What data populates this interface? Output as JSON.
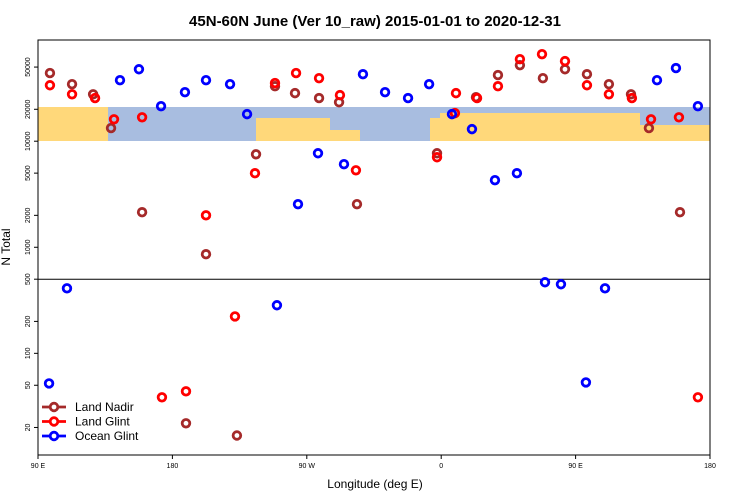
{
  "chart_data": {
    "type": "scatter",
    "title": "45N-60N June (Ver 10_raw)   2015-01-01 to 2020-12-31",
    "xlabel": "Longitude (deg E)",
    "ylabel": "N Total",
    "log_y": true,
    "legend": "lower left",
    "xlim": [
      90,
      540
    ],
    "xticks": [
      {
        "value": 90,
        "label": "90 E"
      },
      180,
      {
        "value": 270,
        "label": "90 W"
      },
      {
        "value": 360,
        "label": "0"
      },
      {
        "value": 450,
        "label": "90 E"
      },
      {
        "value": 540,
        "label": "180"
      }
    ],
    "ylim": [
      11,
      90000
    ],
    "yticks": [
      20,
      50,
      100,
      200,
      500,
      1000,
      2000,
      5000,
      10000,
      20000,
      50000
    ],
    "hline": 500,
    "series": [
      {
        "name": "Land Nadir",
        "color": "#a52a2a",
        "x": [
          98.0,
          112.8,
          126.9,
          138.9,
          159.7,
          202.5,
          189.1,
          223.2,
          236.0,
          248.7,
          262.1,
          278.2,
          291.6,
          303.6,
          357.2,
          383.3,
          398.0,
          412.7,
          428.1,
          442.9,
          457.6,
          472.3,
          487.1,
          499.1,
          519.9
        ],
        "values": [
          43900,
          34500,
          27700,
          13300,
          2140,
          860,
          21.9,
          16.8,
          7530,
          33000,
          28400,
          25500,
          23300,
          2550,
          7700,
          26000,
          42000,
          52100,
          39300,
          47700,
          42800,
          34500,
          27700,
          13300,
          2140
        ]
      },
      {
        "name": "Land Glint",
        "color": "#ff0000",
        "x": [
          98.0,
          112.8,
          128.2,
          140.9,
          159.7,
          173.0,
          189.1,
          202.5,
          221.9,
          235.3,
          248.7,
          262.8,
          278.2,
          292.2,
          302.9,
          357.2,
          369.9,
          369.2,
          384.0,
          398.0,
          412.7,
          427.5,
          442.9,
          457.6,
          472.3,
          487.7,
          500.5,
          519.2,
          531.9
        ],
        "values": [
          33700,
          27700,
          25500,
          16100,
          16800,
          38.5,
          43.8,
          2000,
          223,
          4990,
          35300,
          43900,
          39300,
          27200,
          5320,
          7060,
          28400,
          18400,
          25500,
          33000,
          59400,
          66200,
          56900,
          33700,
          27700,
          25500,
          16100,
          16800,
          38.5
        ]
      },
      {
        "name": "Ocean Glint",
        "color": "#0000ff",
        "x": [
          97.4,
          109.4,
          144.9,
          157.6,
          172.4,
          188.4,
          202.5,
          218.6,
          230.0,
          250.0,
          264.1,
          277.5,
          294.9,
          307.6,
          322.4,
          337.8,
          351.9,
          367.2,
          380.6,
          396.0,
          410.7,
          429.5,
          440.2,
          456.9,
          469.7,
          504.5,
          517.2,
          531.9
        ],
        "values": [
          52,
          410,
          37600,
          47700,
          21400,
          29000,
          37600,
          34500,
          18000,
          284,
          2550,
          7700,
          6070,
          42800,
          29000,
          25500,
          34500,
          18000,
          13000,
          4290,
          4990,
          468,
          448,
          53.2,
          410,
          37600,
          48900,
          21400
        ]
      }
    ]
  }
}
